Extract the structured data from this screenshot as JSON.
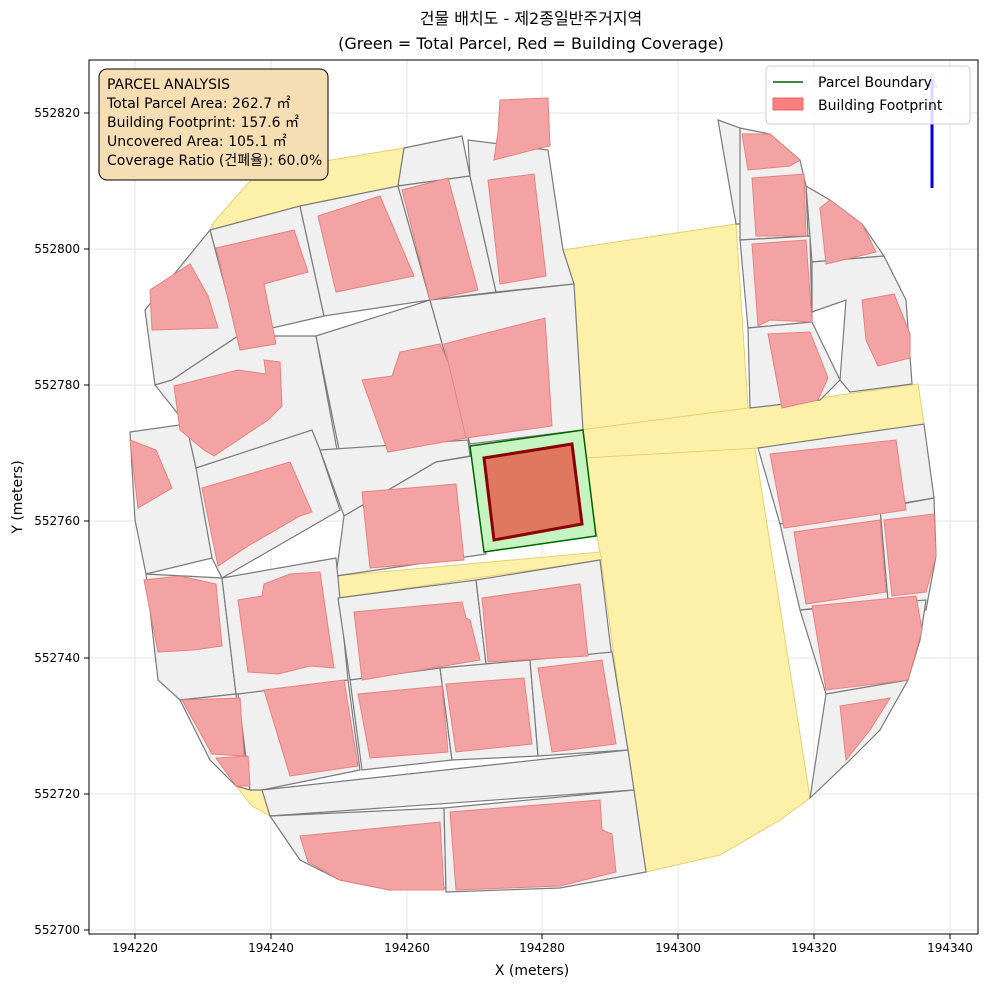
{
  "title": {
    "line1": "건물 배치도 - 제2종일반주거지역",
    "line2": "(Green = Total Parcel, Red = Building Coverage)"
  },
  "axes": {
    "xlabel": "X (meters)",
    "ylabel": "Y (meters)",
    "x_ticks": [
      "194220",
      "194240",
      "194260",
      "194280",
      "194300",
      "194320",
      "194340"
    ],
    "y_ticks": [
      "552700",
      "552720",
      "552740",
      "552760",
      "552780",
      "552800",
      "552820"
    ],
    "grid": true
  },
  "info_box": {
    "heading": "PARCEL ANALYSIS",
    "line1": "Total Parcel Area: 262.7 ㎡",
    "line2": "Building Footprint: 157.6 ㎡",
    "line3": "Uncovered Area: 105.1 ㎡",
    "line4": "Coverage Ratio (건폐율): 60.0%"
  },
  "legend": {
    "parcel_label": "Parcel Boundary",
    "building_label": "Building Footprint",
    "placement": "top-right"
  },
  "colors": {
    "parcel_edge": "#006400",
    "parcel_fill": "#c6f4c0",
    "target_building_edge": "#8b0000",
    "target_building_fill": "#e07860",
    "building_fill": "#f4a3a4",
    "building_edge": "#e88080",
    "neighbor_parcel_fill": "#f0f0f0",
    "neighbor_parcel_edge": "#7a7a7a",
    "road_fill": "#fdf0a8",
    "info_box_fill": "#f5deb3",
    "north_arrow": "#0000ee"
  }
}
